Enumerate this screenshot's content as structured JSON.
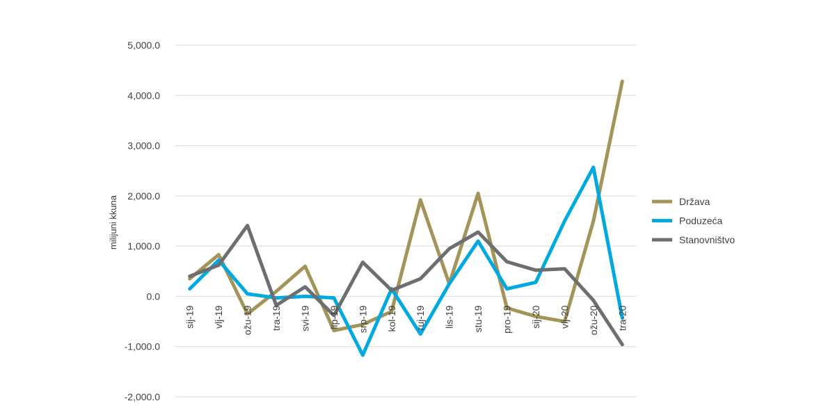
{
  "chart_data": {
    "type": "line",
    "title": "",
    "xlabel": "",
    "ylabel": "milijuni kkuna",
    "categories": [
      "sij-19",
      "vlj-19",
      "ožu-19",
      "tra-19",
      "svi-19",
      "lip-19",
      "srp-19",
      "kol-19",
      "ruj-19",
      "lis-19",
      "stu-19",
      "pro-19",
      "sij-20",
      "vlj-20",
      "ožu-20",
      "tra-20"
    ],
    "ylim": [
      -2000,
      5000
    ],
    "yticks": [
      -2000,
      -1000,
      0,
      1000,
      2000,
      3000,
      4000,
      5000
    ],
    "ytick_labels": [
      "-2,000.0",
      "-1,000.0",
      "0.0",
      "1,000.0",
      "2,000.0",
      "3,000.0",
      "4,000.0",
      "5,000.0"
    ],
    "grid": true,
    "legend_position": "right",
    "series": [
      {
        "name": "Država",
        "color": "#A39459",
        "values": [
          350,
          830,
          -350,
          100,
          600,
          -680,
          -560,
          -300,
          1920,
          250,
          2050,
          -230,
          -400,
          -500,
          1500,
          4280
        ]
      },
      {
        "name": "Poduzeća",
        "color": "#00A9E0",
        "values": [
          150,
          720,
          50,
          -30,
          0,
          -30,
          -1170,
          150,
          -750,
          250,
          1100,
          150,
          280,
          1500,
          2570,
          -430
        ]
      },
      {
        "name": "Stanovništvo",
        "color": "#6D6E71",
        "values": [
          400,
          620,
          1410,
          -180,
          190,
          -380,
          680,
          120,
          350,
          950,
          1280,
          690,
          520,
          550,
          -80,
          -960
        ]
      }
    ]
  }
}
